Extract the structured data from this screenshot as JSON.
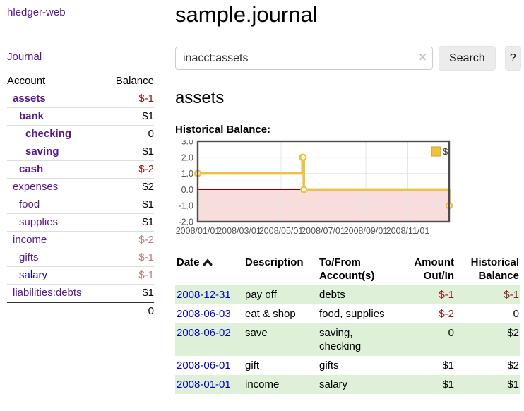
{
  "app": {
    "title": "hledger-web"
  },
  "sidebar": {
    "journal_link": "Journal",
    "accounts": {
      "header_account": "Account",
      "header_balance": "Balance",
      "rows": [
        {
          "name": "assets",
          "balance": "$-1",
          "depth": 1,
          "bold": true,
          "negative": true
        },
        {
          "name": "bank",
          "balance": "$1",
          "depth": 2,
          "bold": true,
          "negative": false
        },
        {
          "name": "checking",
          "balance": "0",
          "depth": 3,
          "bold": true,
          "negative": false
        },
        {
          "name": "saving",
          "balance": "$1",
          "depth": 3,
          "bold": true,
          "negative": false
        },
        {
          "name": "cash",
          "balance": "$-2",
          "depth": 2,
          "bold": true,
          "negative": true
        },
        {
          "name": "expenses",
          "balance": "$2",
          "depth": 1,
          "bold": false,
          "negative": false
        },
        {
          "name": "food",
          "balance": "$1",
          "depth": 2,
          "bold": false,
          "negative": false
        },
        {
          "name": "supplies",
          "balance": "$1",
          "depth": 2,
          "bold": false,
          "negative": false
        },
        {
          "name": "income",
          "balance": "$-2",
          "depth": 1,
          "bold": false,
          "negative": true
        },
        {
          "name": "gifts",
          "balance": "$-1",
          "depth": 2,
          "bold": false,
          "negative": true
        },
        {
          "name": "salary",
          "balance": "$-1",
          "depth": 2,
          "bold": false,
          "negative": true,
          "link_style": "unvisited"
        },
        {
          "name": "liabilities:debts",
          "balance": "$1",
          "depth": 1,
          "bold": false,
          "negative": false
        }
      ],
      "total": "0"
    }
  },
  "main": {
    "title": "sample.journal",
    "search": {
      "value": "inacct:assets",
      "clear_icon": "×",
      "button_label": "Search",
      "help_label": "?"
    },
    "account_heading": "assets",
    "register": {
      "headers": {
        "date": "Date",
        "description": "Description",
        "accounts": "To/From Account(s)",
        "amount": "Amount Out/In",
        "balance": "Historical Balance"
      },
      "rows": [
        {
          "date": "2008-12-31",
          "description": "pay off",
          "accounts": "debts",
          "amount": "$-1",
          "balance": "$-1"
        },
        {
          "date": "2008-06-03",
          "description": "eat & shop",
          "accounts": "food, supplies",
          "amount": "$-2",
          "balance": "0"
        },
        {
          "date": "2008-06-02",
          "description": "save",
          "accounts": "saving, checking",
          "amount": "0",
          "balance": "$2"
        },
        {
          "date": "2008-06-01",
          "description": "gift",
          "accounts": "gifts",
          "amount": "$1",
          "balance": "$2"
        },
        {
          "date": "2008-01-01",
          "description": "income",
          "accounts": "salary",
          "amount": "$1",
          "balance": "$1"
        }
      ]
    }
  },
  "chart_data": {
    "type": "line",
    "title": "Historical Balance:",
    "step": true,
    "series": [
      {
        "name": "$",
        "color": "#edc240",
        "points": [
          {
            "date": "2008-01-01",
            "value": 1
          },
          {
            "date": "2008-06-01",
            "value": 2
          },
          {
            "date": "2008-06-02",
            "value": 2
          },
          {
            "date": "2008-06-03",
            "value": 0
          },
          {
            "date": "2008-12-31",
            "value": -1
          }
        ]
      }
    ],
    "x_ticks": [
      "2008/01/01",
      "2008/03/01",
      "2008/05/01",
      "2008/07/01",
      "2008/09/01",
      "2008/11/01"
    ],
    "y_ticks": [
      "3.0",
      "2.0",
      "1.0",
      "0.0",
      "-1.0",
      "-2.0"
    ],
    "ylim": [
      -2,
      3
    ],
    "xlim_dates": [
      "2008-01-01",
      "2008-12-31"
    ],
    "grid": true,
    "legend": {
      "label": "$",
      "position": "top-right"
    },
    "negative_region_fill": "#f9dcdc",
    "zero_line_color": "#8b0000"
  },
  "colors": {
    "purple_link": "#551a8b",
    "blue_link": "#0000cc",
    "negative_dark": "#8b1a1a",
    "negative_soft": "#b97c7c",
    "row_green": "#dff0d8",
    "chart_line": "#edc240",
    "plot_border": "#4d4d4d",
    "gridline": "#e6e6e6"
  }
}
